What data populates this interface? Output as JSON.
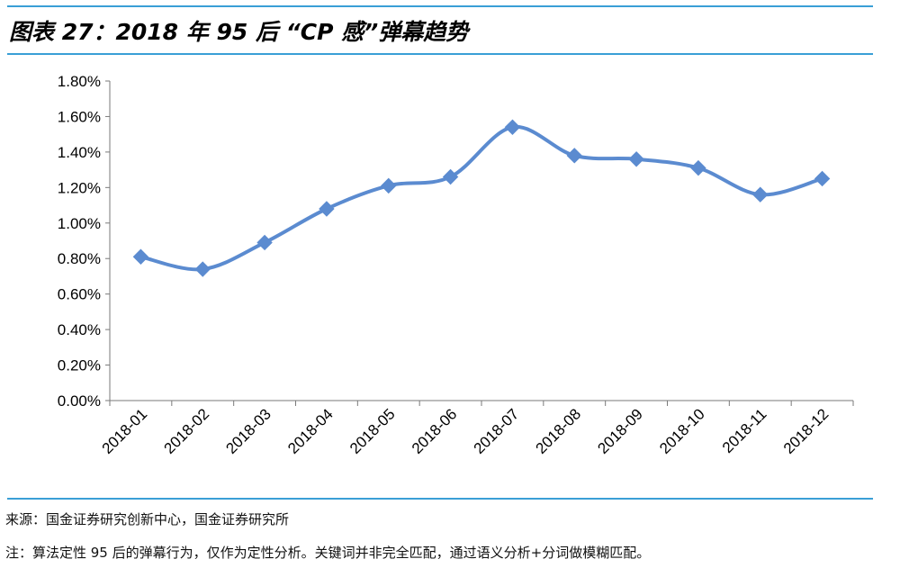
{
  "figure": {
    "title": "图表 27：2018 年 95 后 “CP 感”弹幕趋势",
    "source": "来源：国金证券研究创新中心，国金证券研究所",
    "note": "注：算法定性 95 后的弹幕行为，仅作为定性分析。关键词并非完全匹配，通过语义分析+分词做模糊匹配。"
  },
  "colors": {
    "accent_rule": "#3a9fd6",
    "series": "#5b8bd0"
  },
  "chart_data": {
    "type": "line",
    "title": "",
    "xlabel": "",
    "ylabel": "",
    "categories": [
      "2018-01",
      "2018-02",
      "2018-03",
      "2018-04",
      "2018-05",
      "2018-06",
      "2018-07",
      "2018-08",
      "2018-09",
      "2018-10",
      "2018-11",
      "2018-12"
    ],
    "series": [
      {
        "values": [
          0.81,
          0.74,
          0.89,
          1.08,
          1.21,
          1.26,
          1.54,
          1.38,
          1.36,
          1.31,
          1.16,
          1.25
        ]
      }
    ],
    "ylim": [
      0,
      1.8
    ],
    "yticks": [
      "0.00%",
      "0.20%",
      "0.40%",
      "0.60%",
      "0.80%",
      "1.00%",
      "1.20%",
      "1.40%",
      "1.60%",
      "1.80%"
    ],
    "marker": "diamond",
    "smooth": true,
    "grid": false,
    "legend": "none"
  }
}
